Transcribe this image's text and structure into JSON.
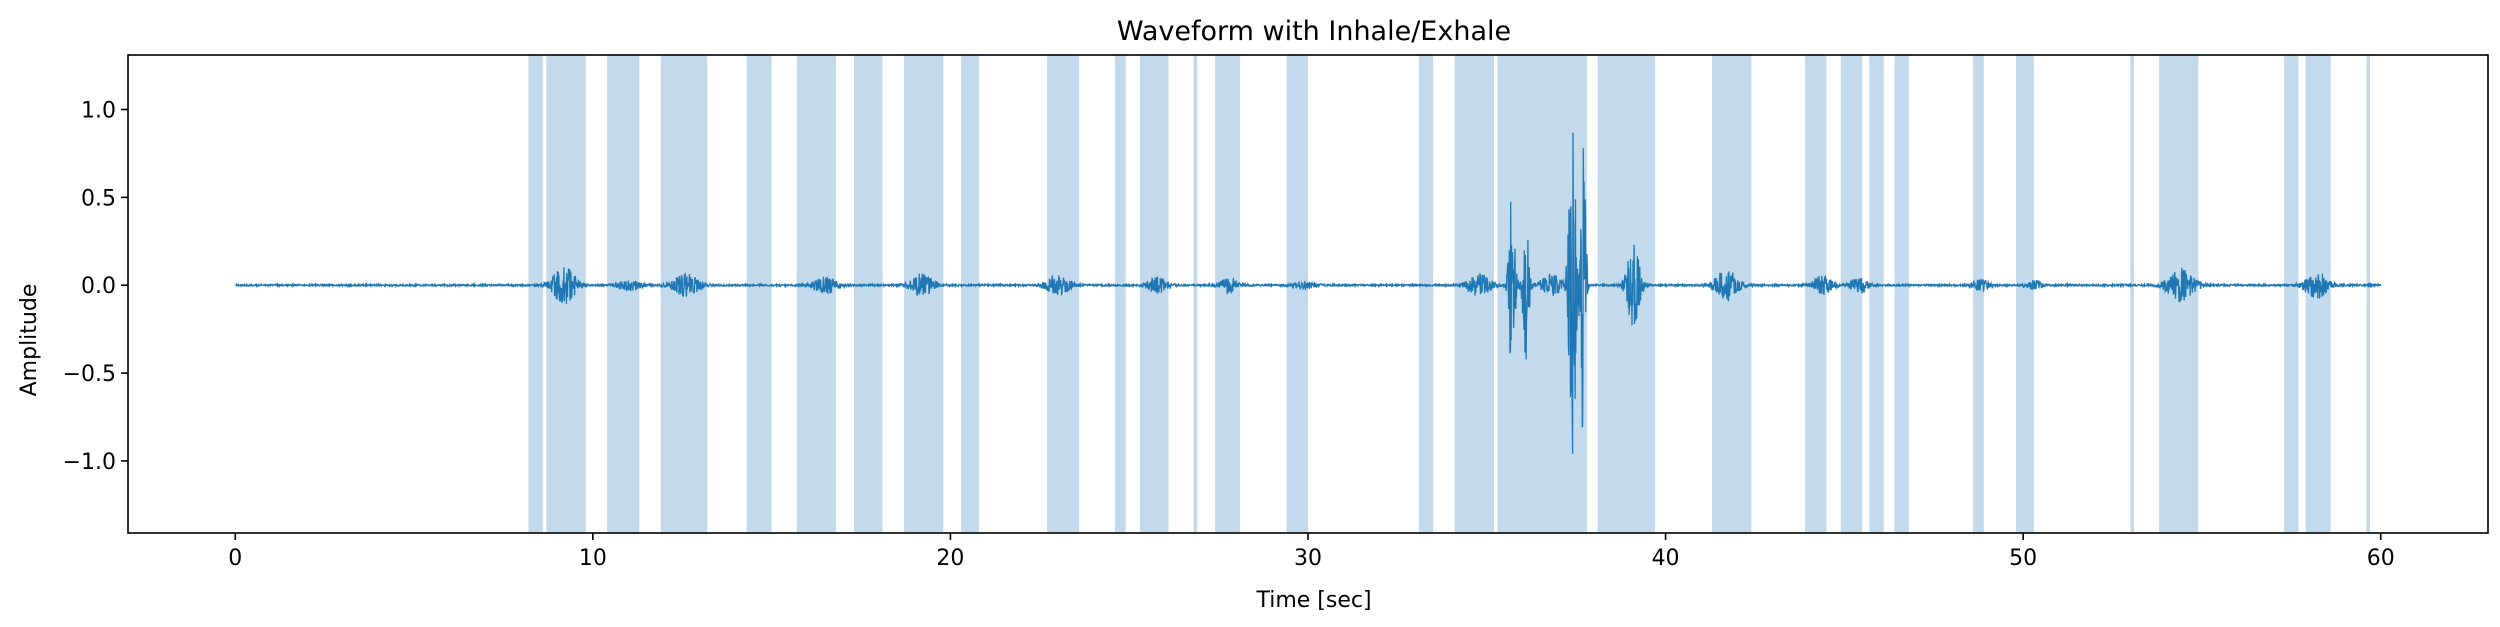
{
  "chart_data": {
    "type": "line",
    "title": "Waveform with Inhale/Exhale",
    "xlabel": "Time [sec]",
    "ylabel": "Amplitude",
    "xlim": [
      -3,
      63
    ],
    "ylim": [
      -1.41,
      1.31
    ],
    "x_ticks": [
      0,
      10,
      20,
      30,
      40,
      50,
      60
    ],
    "x_tick_labels": [
      "0",
      "10",
      "20",
      "30",
      "40",
      "50",
      "60"
    ],
    "y_ticks": [
      -1.0,
      -0.5,
      0.0,
      0.5,
      1.0
    ],
    "y_tick_labels": [
      "−1.0",
      "−0.5",
      "0.0",
      "0.5",
      "1.0"
    ],
    "grid": false,
    "line_color": "#1f77b4",
    "span_color": "#1f77b4",
    "duration_sec": 60,
    "spans": [
      [
        8.2,
        8.6
      ],
      [
        8.7,
        9.8
      ],
      [
        10.4,
        11.3
      ],
      [
        11.9,
        13.2
      ],
      [
        14.3,
        15.0
      ],
      [
        15.7,
        16.8
      ],
      [
        17.3,
        18.1
      ],
      [
        18.7,
        19.8
      ],
      [
        20.3,
        20.8
      ],
      [
        22.7,
        23.6
      ],
      [
        24.6,
        24.9
      ],
      [
        25.3,
        26.1
      ],
      [
        26.8,
        26.9
      ],
      [
        27.4,
        28.1
      ],
      [
        29.4,
        30.0
      ],
      [
        33.1,
        33.5
      ],
      [
        34.1,
        35.2
      ],
      [
        35.3,
        37.8
      ],
      [
        38.1,
        39.7
      ],
      [
        41.3,
        42.4
      ],
      [
        43.9,
        44.5
      ],
      [
        44.9,
        45.5
      ],
      [
        45.7,
        46.1
      ],
      [
        46.4,
        46.8
      ],
      [
        48.6,
        48.9
      ],
      [
        49.8,
        50.3
      ],
      [
        53.0,
        53.1
      ],
      [
        53.8,
        54.9
      ],
      [
        57.3,
        57.7
      ],
      [
        57.9,
        58.6
      ],
      [
        59.6,
        59.7
      ]
    ],
    "bursts": [
      {
        "t": 9.2,
        "amp": 0.14,
        "w": 0.35
      },
      {
        "t": 11.0,
        "amp": 0.04,
        "w": 0.35
      },
      {
        "t": 12.6,
        "amp": 0.08,
        "w": 0.4
      },
      {
        "t": 16.5,
        "amp": 0.06,
        "w": 0.35
      },
      {
        "t": 19.2,
        "amp": 0.08,
        "w": 0.35
      },
      {
        "t": 23.0,
        "amp": 0.07,
        "w": 0.35
      },
      {
        "t": 25.8,
        "amp": 0.06,
        "w": 0.3
      },
      {
        "t": 27.8,
        "amp": 0.06,
        "w": 0.25
      },
      {
        "t": 29.9,
        "amp": 0.03,
        "w": 0.3
      },
      {
        "t": 34.8,
        "amp": 0.08,
        "w": 0.35
      },
      {
        "t": 35.7,
        "amp": 0.65,
        "w": 0.1
      },
      {
        "t": 36.1,
        "amp": 0.55,
        "w": 0.1
      },
      {
        "t": 36.8,
        "amp": 0.08,
        "w": 0.3
      },
      {
        "t": 37.4,
        "amp": 1.25,
        "w": 0.12
      },
      {
        "t": 37.7,
        "amp": 1.15,
        "w": 0.08
      },
      {
        "t": 39.1,
        "amp": 0.3,
        "w": 0.2
      },
      {
        "t": 41.7,
        "amp": 0.11,
        "w": 0.35
      },
      {
        "t": 44.4,
        "amp": 0.07,
        "w": 0.3
      },
      {
        "t": 45.4,
        "amp": 0.06,
        "w": 0.25
      },
      {
        "t": 48.8,
        "amp": 0.04,
        "w": 0.25
      },
      {
        "t": 50.3,
        "amp": 0.03,
        "w": 0.25
      },
      {
        "t": 54.4,
        "amp": 0.12,
        "w": 0.4
      },
      {
        "t": 58.2,
        "amp": 0.1,
        "w": 0.35
      }
    ]
  }
}
